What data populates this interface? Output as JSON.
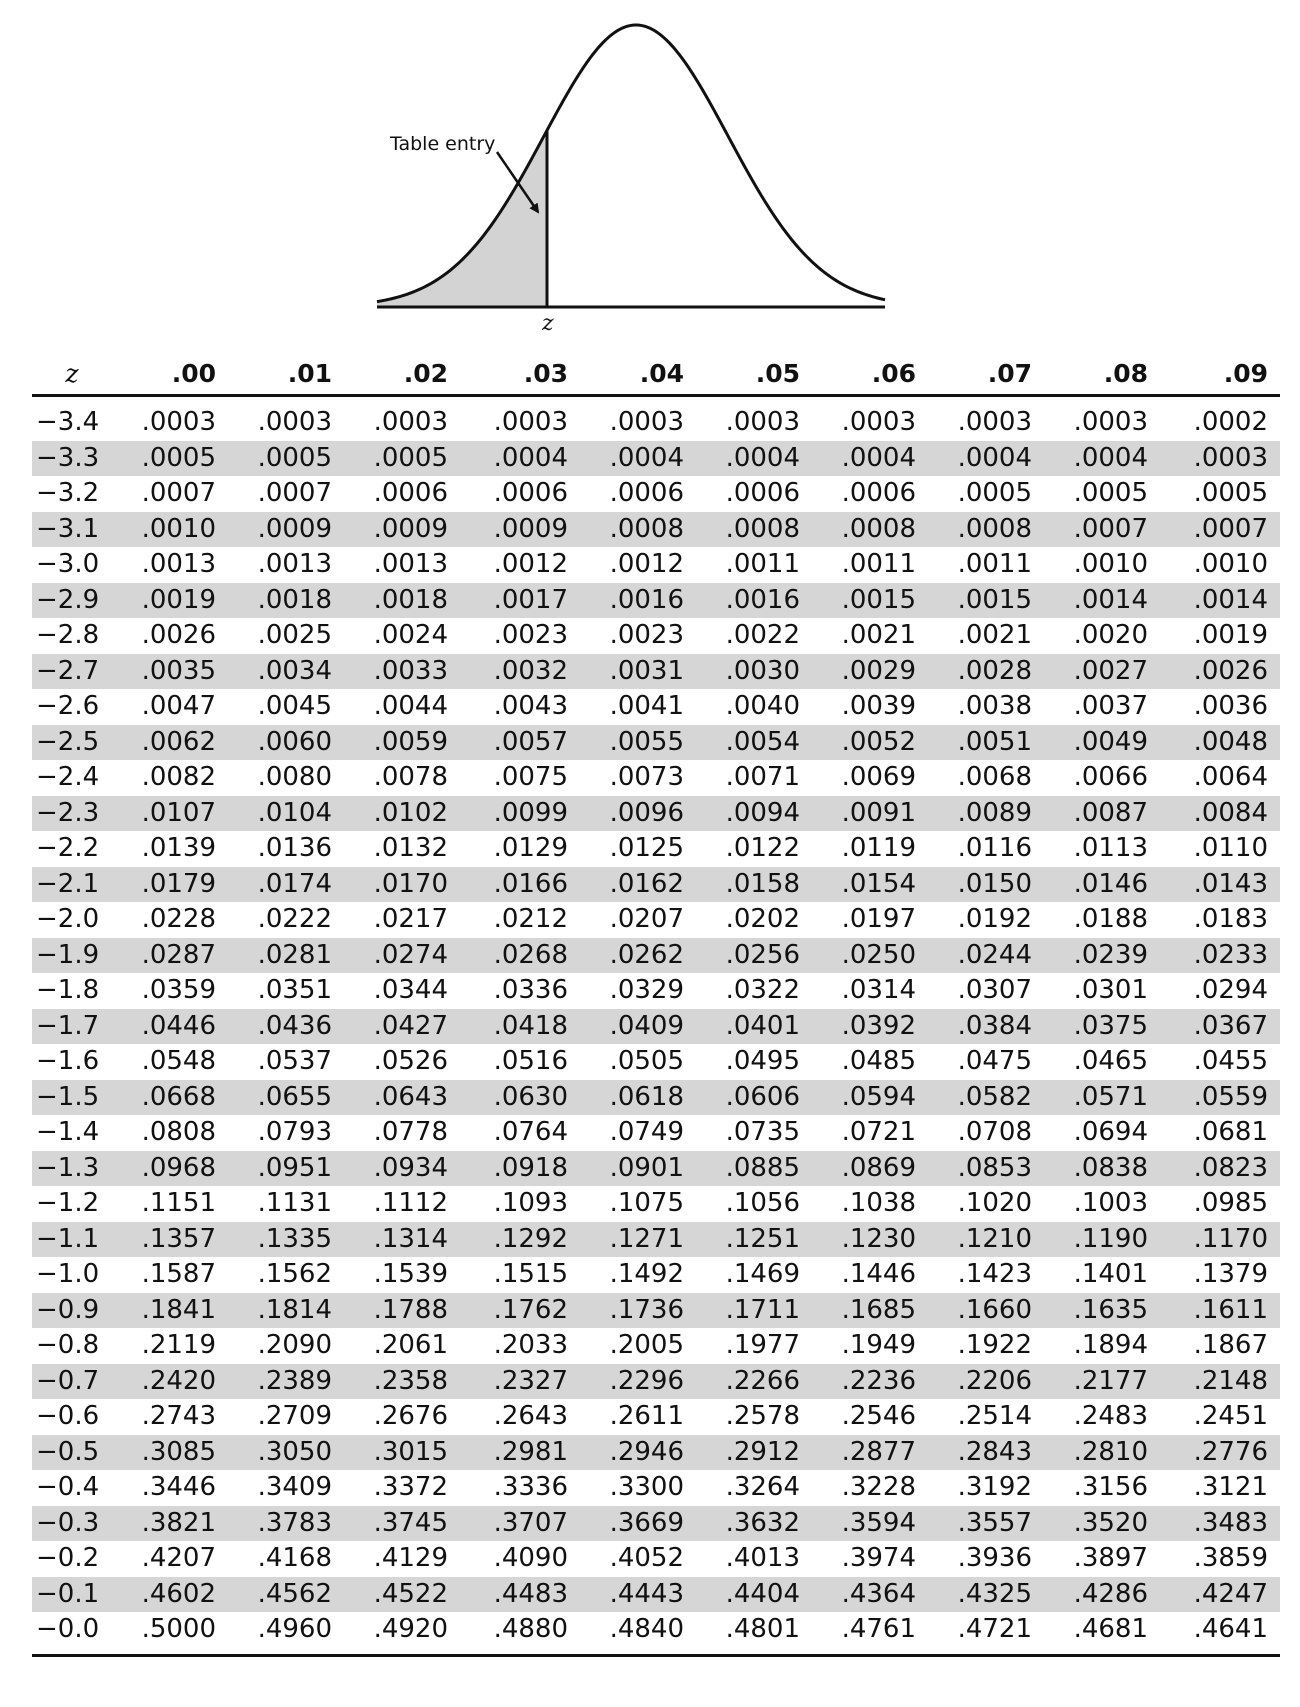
{
  "figure": {
    "annotation": "Table entry",
    "axis_marker": "z"
  },
  "table": {
    "columns": [
      "z",
      ".00",
      ".01",
      ".02",
      ".03",
      ".04",
      ".05",
      ".06",
      ".07",
      ".08",
      ".09"
    ],
    "rows": [
      [
        "−3.4",
        ".0003",
        ".0003",
        ".0003",
        ".0003",
        ".0003",
        ".0003",
        ".0003",
        ".0003",
        ".0003",
        ".0002"
      ],
      [
        "−3.3",
        ".0005",
        ".0005",
        ".0005",
        ".0004",
        ".0004",
        ".0004",
        ".0004",
        ".0004",
        ".0004",
        ".0003"
      ],
      [
        "−3.2",
        ".0007",
        ".0007",
        ".0006",
        ".0006",
        ".0006",
        ".0006",
        ".0006",
        ".0005",
        ".0005",
        ".0005"
      ],
      [
        "−3.1",
        ".0010",
        ".0009",
        ".0009",
        ".0009",
        ".0008",
        ".0008",
        ".0008",
        ".0008",
        ".0007",
        ".0007"
      ],
      [
        "−3.0",
        ".0013",
        ".0013",
        ".0013",
        ".0012",
        ".0012",
        ".0011",
        ".0011",
        ".0011",
        ".0010",
        ".0010"
      ],
      [
        "−2.9",
        ".0019",
        ".0018",
        ".0018",
        ".0017",
        ".0016",
        ".0016",
        ".0015",
        ".0015",
        ".0014",
        ".0014"
      ],
      [
        "−2.8",
        ".0026",
        ".0025",
        ".0024",
        ".0023",
        ".0023",
        ".0022",
        ".0021",
        ".0021",
        ".0020",
        ".0019"
      ],
      [
        "−2.7",
        ".0035",
        ".0034",
        ".0033",
        ".0032",
        ".0031",
        ".0030",
        ".0029",
        ".0028",
        ".0027",
        ".0026"
      ],
      [
        "−2.6",
        ".0047",
        ".0045",
        ".0044",
        ".0043",
        ".0041",
        ".0040",
        ".0039",
        ".0038",
        ".0037",
        ".0036"
      ],
      [
        "−2.5",
        ".0062",
        ".0060",
        ".0059",
        ".0057",
        ".0055",
        ".0054",
        ".0052",
        ".0051",
        ".0049",
        ".0048"
      ],
      [
        "−2.4",
        ".0082",
        ".0080",
        ".0078",
        ".0075",
        ".0073",
        ".0071",
        ".0069",
        ".0068",
        ".0066",
        ".0064"
      ],
      [
        "−2.3",
        ".0107",
        ".0104",
        ".0102",
        ".0099",
        ".0096",
        ".0094",
        ".0091",
        ".0089",
        ".0087",
        ".0084"
      ],
      [
        "−2.2",
        ".0139",
        ".0136",
        ".0132",
        ".0129",
        ".0125",
        ".0122",
        ".0119",
        ".0116",
        ".0113",
        ".0110"
      ],
      [
        "−2.1",
        ".0179",
        ".0174",
        ".0170",
        ".0166",
        ".0162",
        ".0158",
        ".0154",
        ".0150",
        ".0146",
        ".0143"
      ],
      [
        "−2.0",
        ".0228",
        ".0222",
        ".0217",
        ".0212",
        ".0207",
        ".0202",
        ".0197",
        ".0192",
        ".0188",
        ".0183"
      ],
      [
        "−1.9",
        ".0287",
        ".0281",
        ".0274",
        ".0268",
        ".0262",
        ".0256",
        ".0250",
        ".0244",
        ".0239",
        ".0233"
      ],
      [
        "−1.8",
        ".0359",
        ".0351",
        ".0344",
        ".0336",
        ".0329",
        ".0322",
        ".0314",
        ".0307",
        ".0301",
        ".0294"
      ],
      [
        "−1.7",
        ".0446",
        ".0436",
        ".0427",
        ".0418",
        ".0409",
        ".0401",
        ".0392",
        ".0384",
        ".0375",
        ".0367"
      ],
      [
        "−1.6",
        ".0548",
        ".0537",
        ".0526",
        ".0516",
        ".0505",
        ".0495",
        ".0485",
        ".0475",
        ".0465",
        ".0455"
      ],
      [
        "−1.5",
        ".0668",
        ".0655",
        ".0643",
        ".0630",
        ".0618",
        ".0606",
        ".0594",
        ".0582",
        ".0571",
        ".0559"
      ],
      [
        "−1.4",
        ".0808",
        ".0793",
        ".0778",
        ".0764",
        ".0749",
        ".0735",
        ".0721",
        ".0708",
        ".0694",
        ".0681"
      ],
      [
        "−1.3",
        ".0968",
        ".0951",
        ".0934",
        ".0918",
        ".0901",
        ".0885",
        ".0869",
        ".0853",
        ".0838",
        ".0823"
      ],
      [
        "−1.2",
        ".1151",
        ".1131",
        ".1112",
        ".1093",
        ".1075",
        ".1056",
        ".1038",
        ".1020",
        ".1003",
        ".0985"
      ],
      [
        "−1.1",
        ".1357",
        ".1335",
        ".1314",
        ".1292",
        ".1271",
        ".1251",
        ".1230",
        ".1210",
        ".1190",
        ".1170"
      ],
      [
        "−1.0",
        ".1587",
        ".1562",
        ".1539",
        ".1515",
        ".1492",
        ".1469",
        ".1446",
        ".1423",
        ".1401",
        ".1379"
      ],
      [
        "−0.9",
        ".1841",
        ".1814",
        ".1788",
        ".1762",
        ".1736",
        ".1711",
        ".1685",
        ".1660",
        ".1635",
        ".1611"
      ],
      [
        "−0.8",
        ".2119",
        ".2090",
        ".2061",
        ".2033",
        ".2005",
        ".1977",
        ".1949",
        ".1922",
        ".1894",
        ".1867"
      ],
      [
        "−0.7",
        ".2420",
        ".2389",
        ".2358",
        ".2327",
        ".2296",
        ".2266",
        ".2236",
        ".2206",
        ".2177",
        ".2148"
      ],
      [
        "−0.6",
        ".2743",
        ".2709",
        ".2676",
        ".2643",
        ".2611",
        ".2578",
        ".2546",
        ".2514",
        ".2483",
        ".2451"
      ],
      [
        "−0.5",
        ".3085",
        ".3050",
        ".3015",
        ".2981",
        ".2946",
        ".2912",
        ".2877",
        ".2843",
        ".2810",
        ".2776"
      ],
      [
        "−0.4",
        ".3446",
        ".3409",
        ".3372",
        ".3336",
        ".3300",
        ".3264",
        ".3228",
        ".3192",
        ".3156",
        ".3121"
      ],
      [
        "−0.3",
        ".3821",
        ".3783",
        ".3745",
        ".3707",
        ".3669",
        ".3632",
        ".3594",
        ".3557",
        ".3520",
        ".3483"
      ],
      [
        "−0.2",
        ".4207",
        ".4168",
        ".4129",
        ".4090",
        ".4052",
        ".4013",
        ".3974",
        ".3936",
        ".3897",
        ".3859"
      ],
      [
        "−0.1",
        ".4602",
        ".4562",
        ".4522",
        ".4483",
        ".4443",
        ".4404",
        ".4364",
        ".4325",
        ".4286",
        ".4247"
      ],
      [
        "−0.0",
        ".5000",
        ".4960",
        ".4920",
        ".4880",
        ".4840",
        ".4801",
        ".4761",
        ".4721",
        ".4681",
        ".4641"
      ]
    ]
  }
}
